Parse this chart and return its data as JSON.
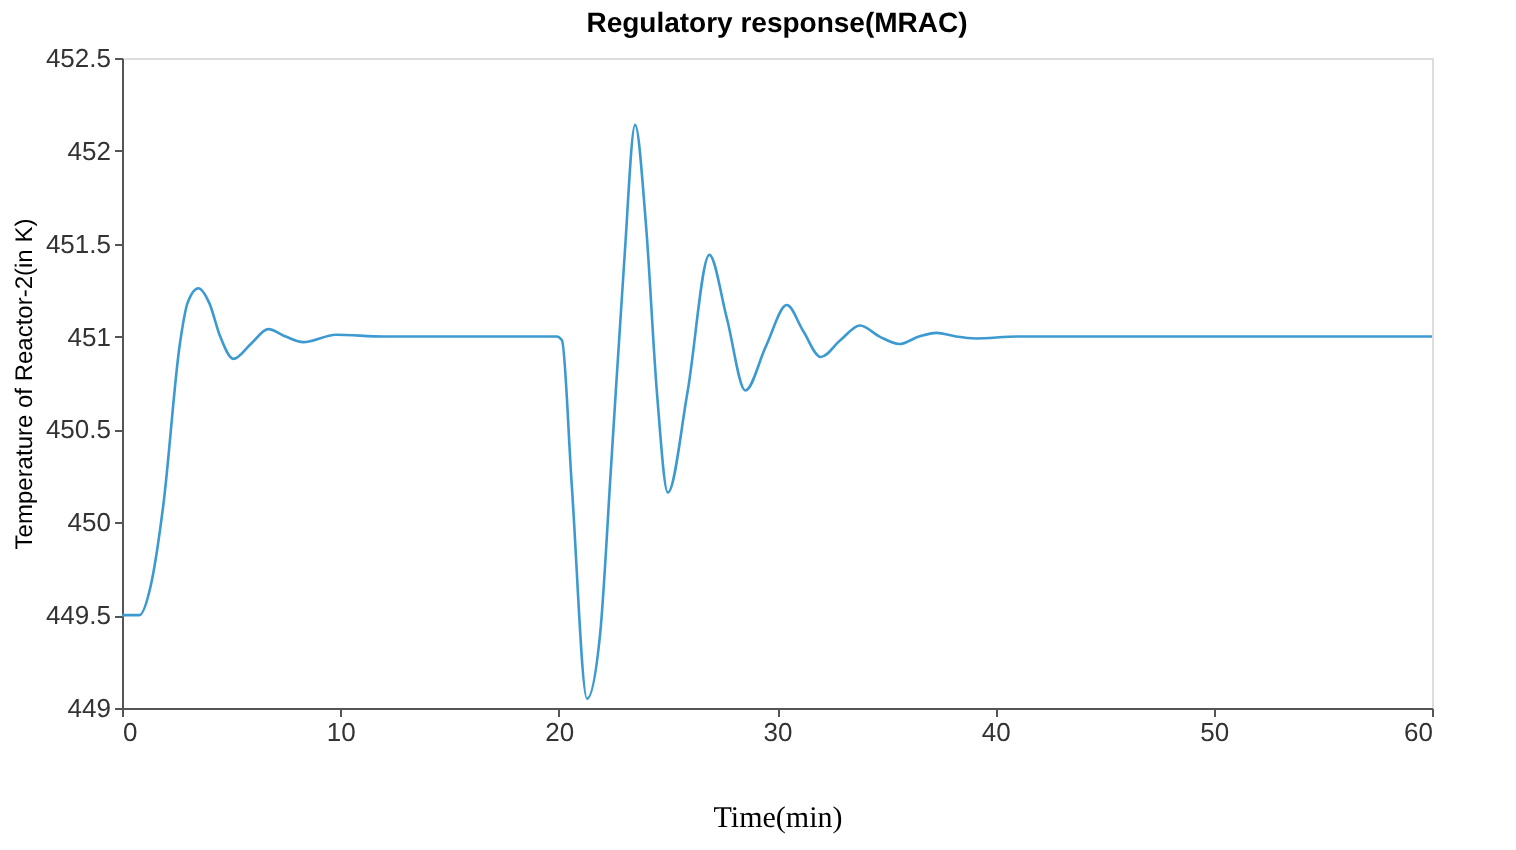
{
  "chart_data": {
    "type": "line",
    "title": "Regulatory response(MRAC)",
    "xlabel": "Time(min)",
    "ylabel": "Temperature of Reactor-2(in K)",
    "x": [
      0,
      0.8,
      1.3,
      1.9,
      2.65,
      3.0,
      3.5,
      4.0,
      4.5,
      5.1,
      5.9,
      6.7,
      7.5,
      8.3,
      9.8,
      12,
      15,
      19.9,
      20.15,
      20.6,
      21.3,
      21.9,
      22.4,
      23.0,
      23.5,
      24.0,
      24.5,
      25.0,
      25.9,
      26.9,
      27.7,
      28.55,
      29.5,
      30.45,
      31.2,
      32.0,
      32.9,
      33.8,
      34.7,
      35.6,
      36.5,
      37.3,
      38.2,
      39.1,
      41,
      45,
      50,
      55,
      60
    ],
    "series": [
      {
        "color": "#3d9ad1",
        "values": [
          449.5,
          449.5,
          449.65,
          450.1,
          450.96,
          451.18,
          451.26,
          451.18,
          451.0,
          450.88,
          450.96,
          451.04,
          451.0,
          450.97,
          451.01,
          451.0,
          451.0,
          451.0,
          450.98,
          450.2,
          449.05,
          449.4,
          450.3,
          451.4,
          452.14,
          451.6,
          450.7,
          450.16,
          450.7,
          451.44,
          451.1,
          450.71,
          450.95,
          451.17,
          451.03,
          450.89,
          450.98,
          451.06,
          451.0,
          450.96,
          451.0,
          451.02,
          451.0,
          450.99,
          451.0,
          451.0,
          451.0,
          451.0,
          451.0
        ]
      }
    ],
    "xlim": [
      0,
      60
    ],
    "xticks": [
      0,
      10,
      20,
      30,
      40,
      50,
      60
    ],
    "ylim": [
      449,
      452.5
    ],
    "yticks": [
      449,
      449.5,
      450,
      450.5,
      451,
      451.5,
      452,
      452.5
    ],
    "grid": false,
    "legend": false
  }
}
